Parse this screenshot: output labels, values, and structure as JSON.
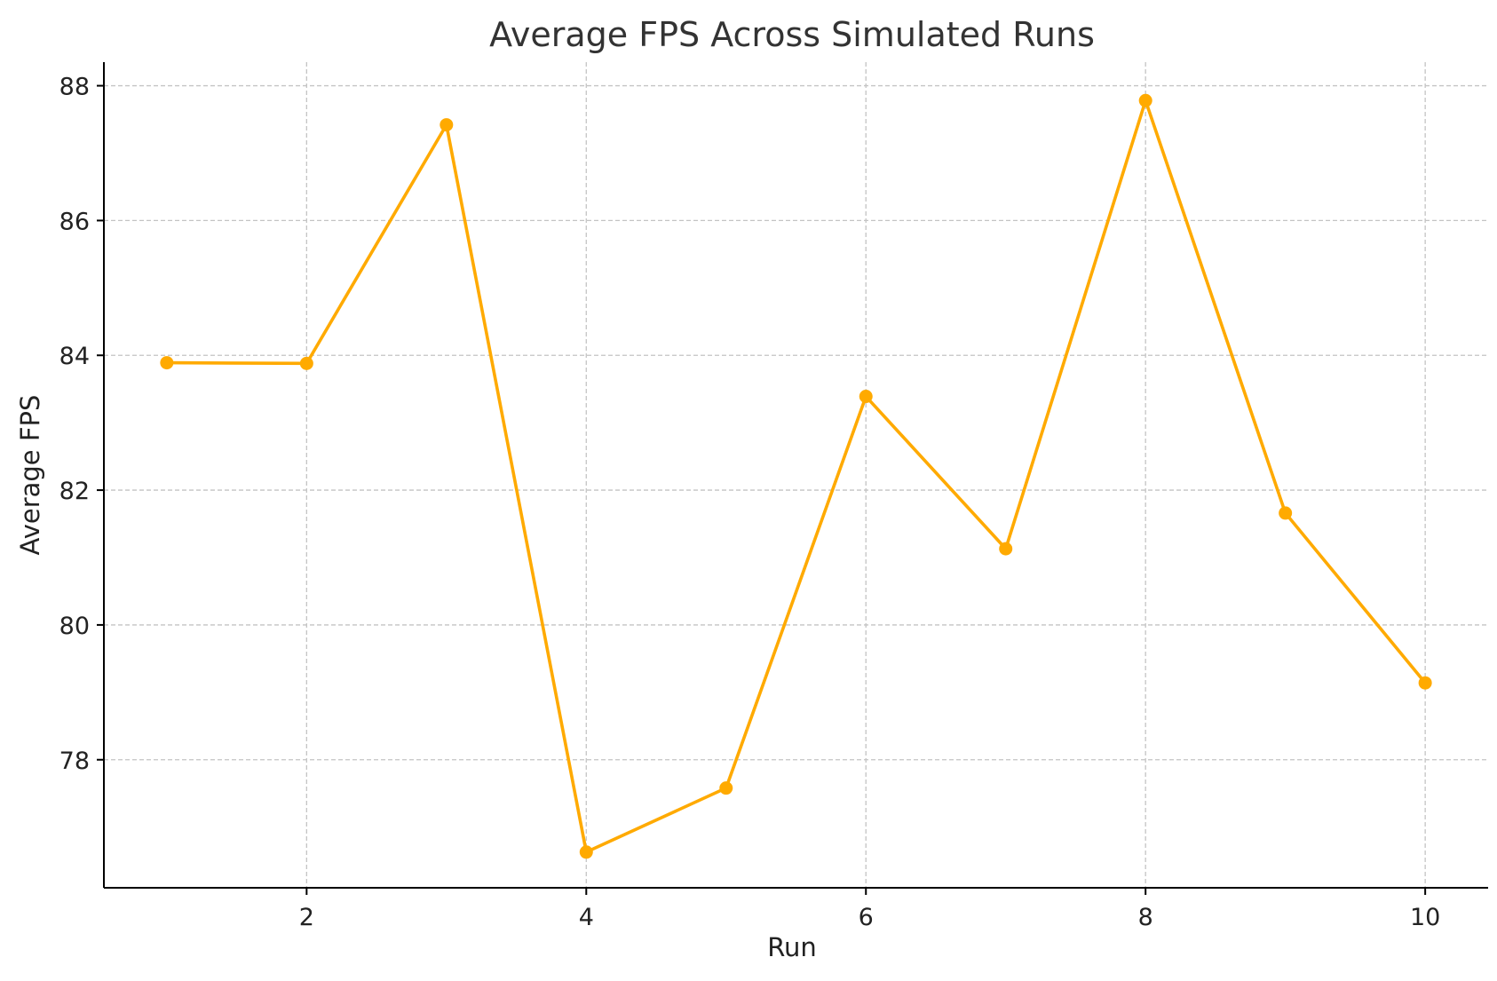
{
  "chart_data": {
    "type": "line",
    "title": "Average FPS Across Simulated Runs",
    "xlabel": "Run",
    "ylabel": "Average FPS",
    "x": [
      1,
      2,
      3,
      4,
      5,
      6,
      7,
      8,
      9,
      10
    ],
    "series": [
      {
        "values": [
          83.89,
          83.88,
          87.42,
          76.63,
          77.58,
          83.39,
          81.13,
          87.78,
          81.66,
          79.14
        ],
        "color": "#FFAA00",
        "marker": "circle"
      }
    ],
    "xlim": [
      0.55,
      10.45
    ],
    "ylim": [
      76.1,
      88.35
    ],
    "xticks": [
      2,
      4,
      6,
      8,
      10
    ],
    "xtick_labels": [
      "2",
      "4",
      "6",
      "8",
      "10"
    ],
    "yticks": [
      78,
      80,
      82,
      84,
      86,
      88
    ],
    "ytick_labels": [
      "78",
      "80",
      "82",
      "84",
      "86",
      "88"
    ],
    "grid": true,
    "grid_style": "dashed",
    "legend": "none"
  }
}
